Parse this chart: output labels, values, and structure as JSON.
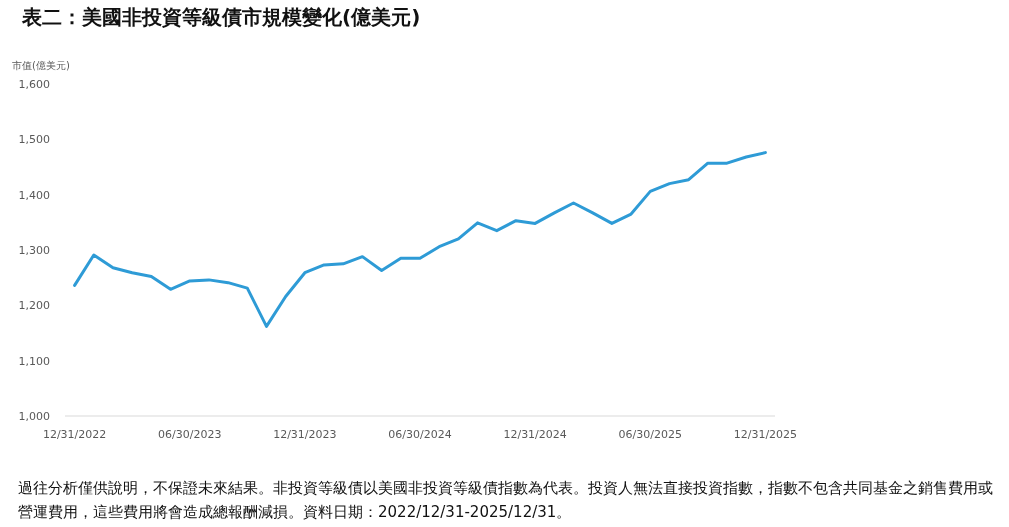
{
  "chart_data": {
    "type": "line",
    "title": "表二：美國非投資等級債市規模變化(億美元)",
    "ylabel": "市值(億美元)",
    "categories": [
      "12/31/2022",
      null,
      null,
      null,
      null,
      null,
      "06/30/2023",
      null,
      null,
      null,
      null,
      null,
      "12/31/2023",
      null,
      null,
      null,
      null,
      null,
      "06/30/2024",
      null,
      null,
      null,
      null,
      null,
      "12/31/2024",
      null,
      null,
      null,
      null,
      null,
      "06/30/2025",
      null,
      null,
      null,
      null,
      null,
      "12/31/2025"
    ],
    "series": [
      {
        "color": "#2e9bd6",
        "values": [
          1236,
          1291,
          1268,
          1259,
          1252,
          1229,
          1244,
          1246,
          1241,
          1231,
          1162,
          1216,
          1259,
          1273,
          1275,
          1288,
          1263,
          1285,
          1285,
          1306,
          1320,
          1349,
          1335,
          1353,
          1348,
          1367,
          1385,
          1367,
          1348,
          1365,
          1406,
          1420,
          1427,
          1457,
          1457,
          1468,
          1476
        ]
      }
    ],
    "ylim": [
      1000,
      1600
    ],
    "yticks": [
      {
        "value": 1000,
        "label": "1,000"
      },
      {
        "value": 1100,
        "label": "1,100"
      },
      {
        "value": 1200,
        "label": "1,200"
      },
      {
        "value": 1300,
        "label": "1,300"
      },
      {
        "value": 1400,
        "label": "1,400"
      },
      {
        "value": 1500,
        "label": "1,500"
      },
      {
        "value": 1600,
        "label": "1,600"
      }
    ],
    "grid": false,
    "marker": "none",
    "line_style": "solid",
    "annotations": [
      "過往分析僅供說明，不保證未來結果。非投資等級債以美國非投資等級債指數為代表。投資人無法直接投資指數，指數不包含共同基金之銷售費用或營運費用，這些費用將會造成總報酬減損。資料日期：2022/12/31-2025/12/31。"
    ]
  }
}
